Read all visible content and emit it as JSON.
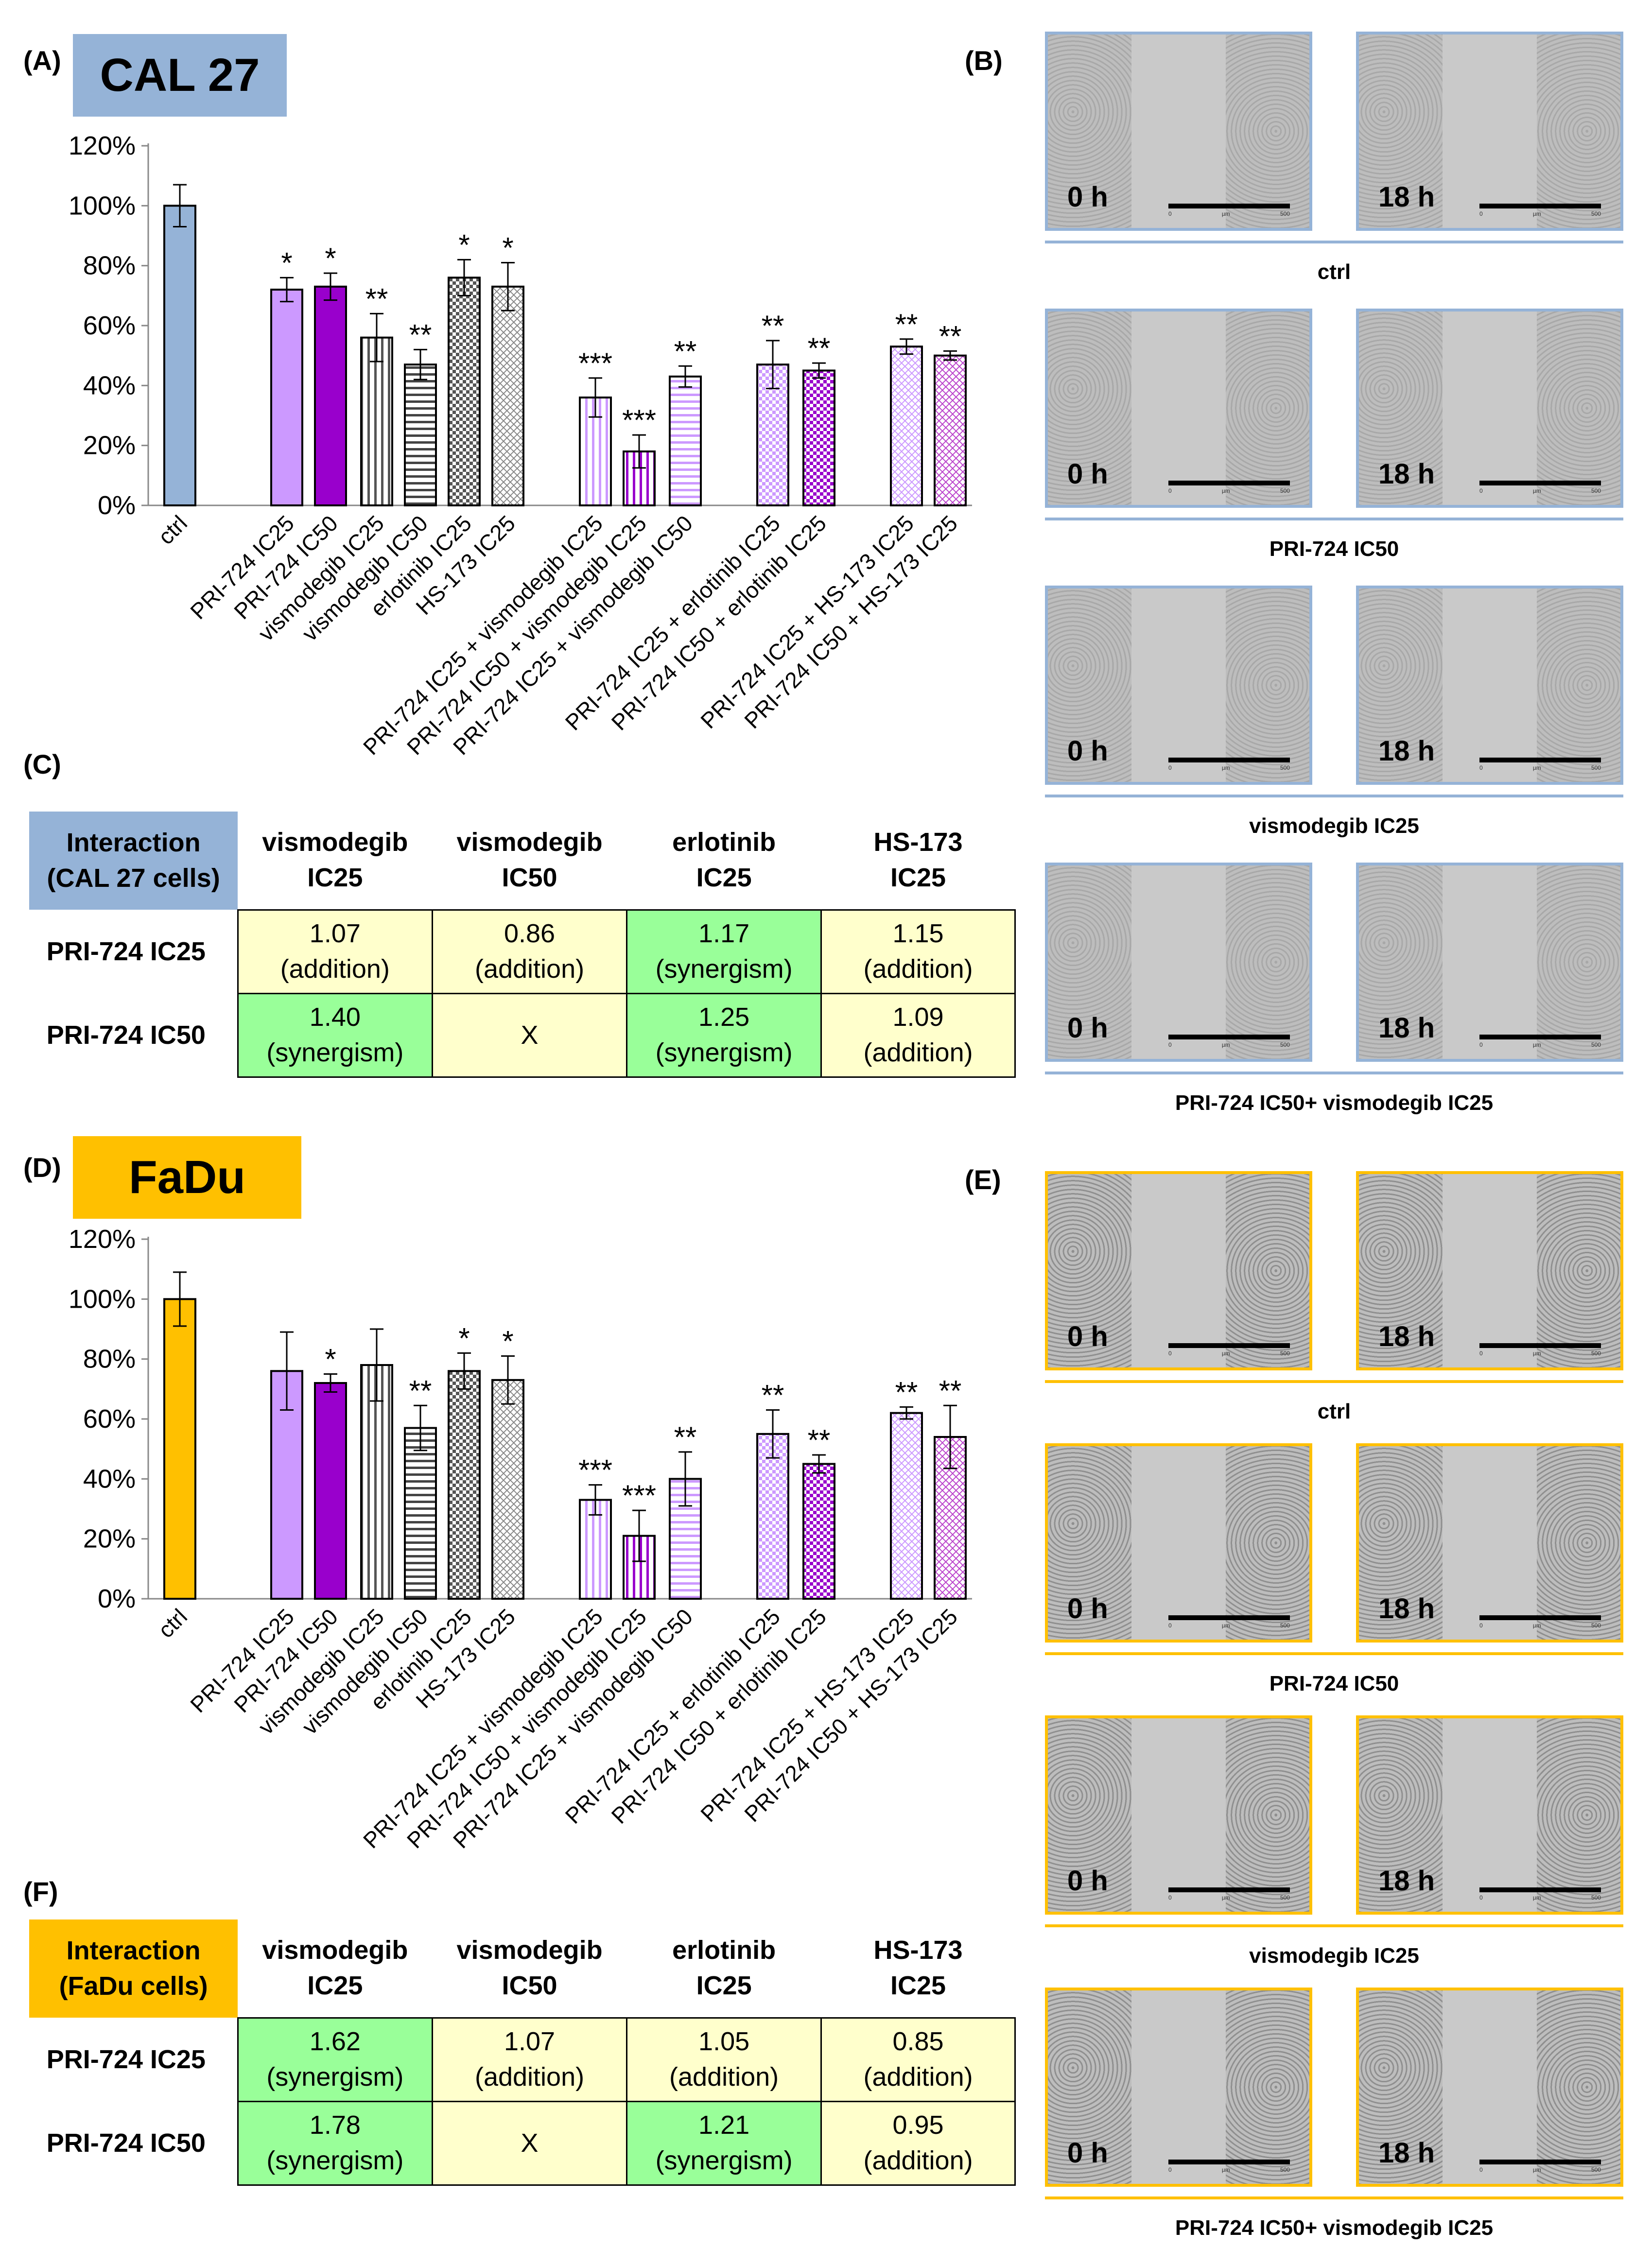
{
  "colors": {
    "cal_blue": "#95b3d7",
    "fadu_gold": "#ffc000",
    "green": "#99ff99",
    "yellow": "#ffffcc",
    "grey": "#f2f2f2",
    "purple_light": "#cc99ff",
    "purple_dark": "#9900cc"
  },
  "panels": {
    "A": "(A)",
    "B": "(B)",
    "C": "(C)",
    "D": "(D)",
    "E": "(E)",
    "F": "(F)"
  },
  "titles": {
    "cal": "CAL 27",
    "fadu": "FaDu"
  },
  "chart_data": [
    {
      "type": "bar",
      "title": "CAL 27",
      "ylabel": "",
      "xlabel": "",
      "ylim": [
        0,
        1.2
      ],
      "yticks": [
        "0%",
        "20%",
        "40%",
        "60%",
        "80%",
        "100%",
        "120%"
      ],
      "categories": [
        "ctrl",
        "PRI-724 IC25",
        "PRI-724 IC50",
        "vismodegib IC25",
        "vismodegib IC50",
        "erlotinib IC25",
        "HS-173 IC25",
        "PRI-724 IC25 + vismodegib IC25",
        "PRI-724 IC50 + vismodegib IC25",
        "PRI-724 IC25 + vismodegib IC50",
        "PRI-724 IC25 + erlotinib IC25",
        "PRI-724 IC50 + erlotinib IC25",
        "PRI-724 IC25 + HS-173 IC25",
        "PRI-724 IC50 + HS-173 IC25"
      ],
      "values": [
        1.0,
        0.72,
        0.73,
        0.56,
        0.47,
        0.76,
        0.73,
        0.36,
        0.18,
        0.43,
        0.47,
        0.45,
        0.53,
        0.5
      ],
      "errors": [
        0.07,
        0.04,
        0.045,
        0.08,
        0.05,
        0.06,
        0.08,
        0.065,
        0.055,
        0.035,
        0.08,
        0.025,
        0.025,
        0.015
      ],
      "significance": [
        "",
        "*",
        "*",
        "**",
        "**",
        "*",
        "*",
        "***",
        "***",
        "**",
        "**",
        "**",
        "**",
        "**"
      ]
    },
    {
      "type": "bar",
      "title": "FaDu",
      "ylabel": "",
      "xlabel": "",
      "ylim": [
        0,
        1.2
      ],
      "yticks": [
        "0%",
        "20%",
        "40%",
        "60%",
        "80%",
        "100%",
        "120%"
      ],
      "categories": [
        "ctrl",
        "PRI-724 IC25",
        "PRI-724 IC50",
        "vismodegib IC25",
        "vismodegib IC50",
        "erlotinib IC25",
        "HS-173 IC25",
        "PRI-724 IC25 + vismodegib IC25",
        "PRI-724 IC50 + vismodegib IC25",
        "PRI-724 IC25 + vismodegib IC50",
        "PRI-724 IC25 + erlotinib IC25",
        "PRI-724 IC50 + erlotinib IC25",
        "PRI-724 IC25 + HS-173 IC25",
        "PRI-724 IC50 + HS-173 IC25"
      ],
      "values": [
        1.0,
        0.76,
        0.72,
        0.78,
        0.57,
        0.76,
        0.73,
        0.33,
        0.21,
        0.4,
        0.55,
        0.45,
        0.62,
        0.54
      ],
      "errors": [
        0.09,
        0.13,
        0.03,
        0.12,
        0.075,
        0.06,
        0.08,
        0.05,
        0.085,
        0.09,
        0.08,
        0.03,
        0.02,
        0.105
      ],
      "significance": [
        "",
        "",
        "*",
        "",
        "**",
        "*",
        "*",
        "***",
        "***",
        "**",
        "**",
        "**",
        "**",
        "**"
      ]
    }
  ],
  "tables": {
    "cal": {
      "corner": [
        "Interaction",
        "(CAL 27 cells)"
      ],
      "cols": [
        [
          "vismodegib",
          "IC25"
        ],
        [
          "vismodegib",
          "IC50"
        ],
        [
          "erlotinib",
          "IC25"
        ],
        [
          "HS-173",
          "IC25"
        ]
      ],
      "rows": [
        {
          "label": "PRI-724 IC25",
          "cells": [
            [
              "1.07",
              "(addition)"
            ],
            [
              "0.86",
              "(addition)"
            ],
            [
              "1.17",
              "(synergism)"
            ],
            [
              "1.15",
              "(addition)"
            ]
          ]
        },
        {
          "label": "PRI-724 IC50",
          "cells": [
            [
              "1.40",
              "(synergism)"
            ],
            [
              "X",
              ""
            ],
            [
              "1.25",
              "(synergism)"
            ],
            [
              "1.09",
              "(addition)"
            ]
          ]
        }
      ]
    },
    "fadu": {
      "corner": [
        "Interaction",
        "(FaDu cells)"
      ],
      "cols": [
        [
          "vismodegib",
          "IC25"
        ],
        [
          "vismodegib",
          "IC50"
        ],
        [
          "erlotinib",
          "IC25"
        ],
        [
          "HS-173",
          "IC25"
        ]
      ],
      "rows": [
        {
          "label": "PRI-724 IC25",
          "cells": [
            [
              "1.62",
              "(synergism)"
            ],
            [
              "1.07",
              "(addition)"
            ],
            [
              "1.05",
              "(addition)"
            ],
            [
              "0.85",
              "(addition)"
            ]
          ]
        },
        {
          "label": "PRI-724 IC50",
          "cells": [
            [
              "1.78",
              "(synergism)"
            ],
            [
              "X",
              ""
            ],
            [
              "1.21",
              "(synergism)"
            ],
            [
              "0.95",
              "(addition)"
            ]
          ]
        }
      ]
    }
  },
  "micrographs": {
    "time_left": "0 h",
    "time_right": "18 h",
    "scale_ticks": [
      "0",
      "µm",
      "500"
    ],
    "cal_captions": [
      "ctrl",
      "PRI-724 IC50",
      "vismodegib IC25",
      "PRI-724 IC50+ vismodegib IC25"
    ],
    "fadu_captions": [
      "ctrl",
      "PRI-724 IC50",
      "vismodegib IC25",
      "PRI-724 IC50+ vismodegib IC25"
    ]
  }
}
